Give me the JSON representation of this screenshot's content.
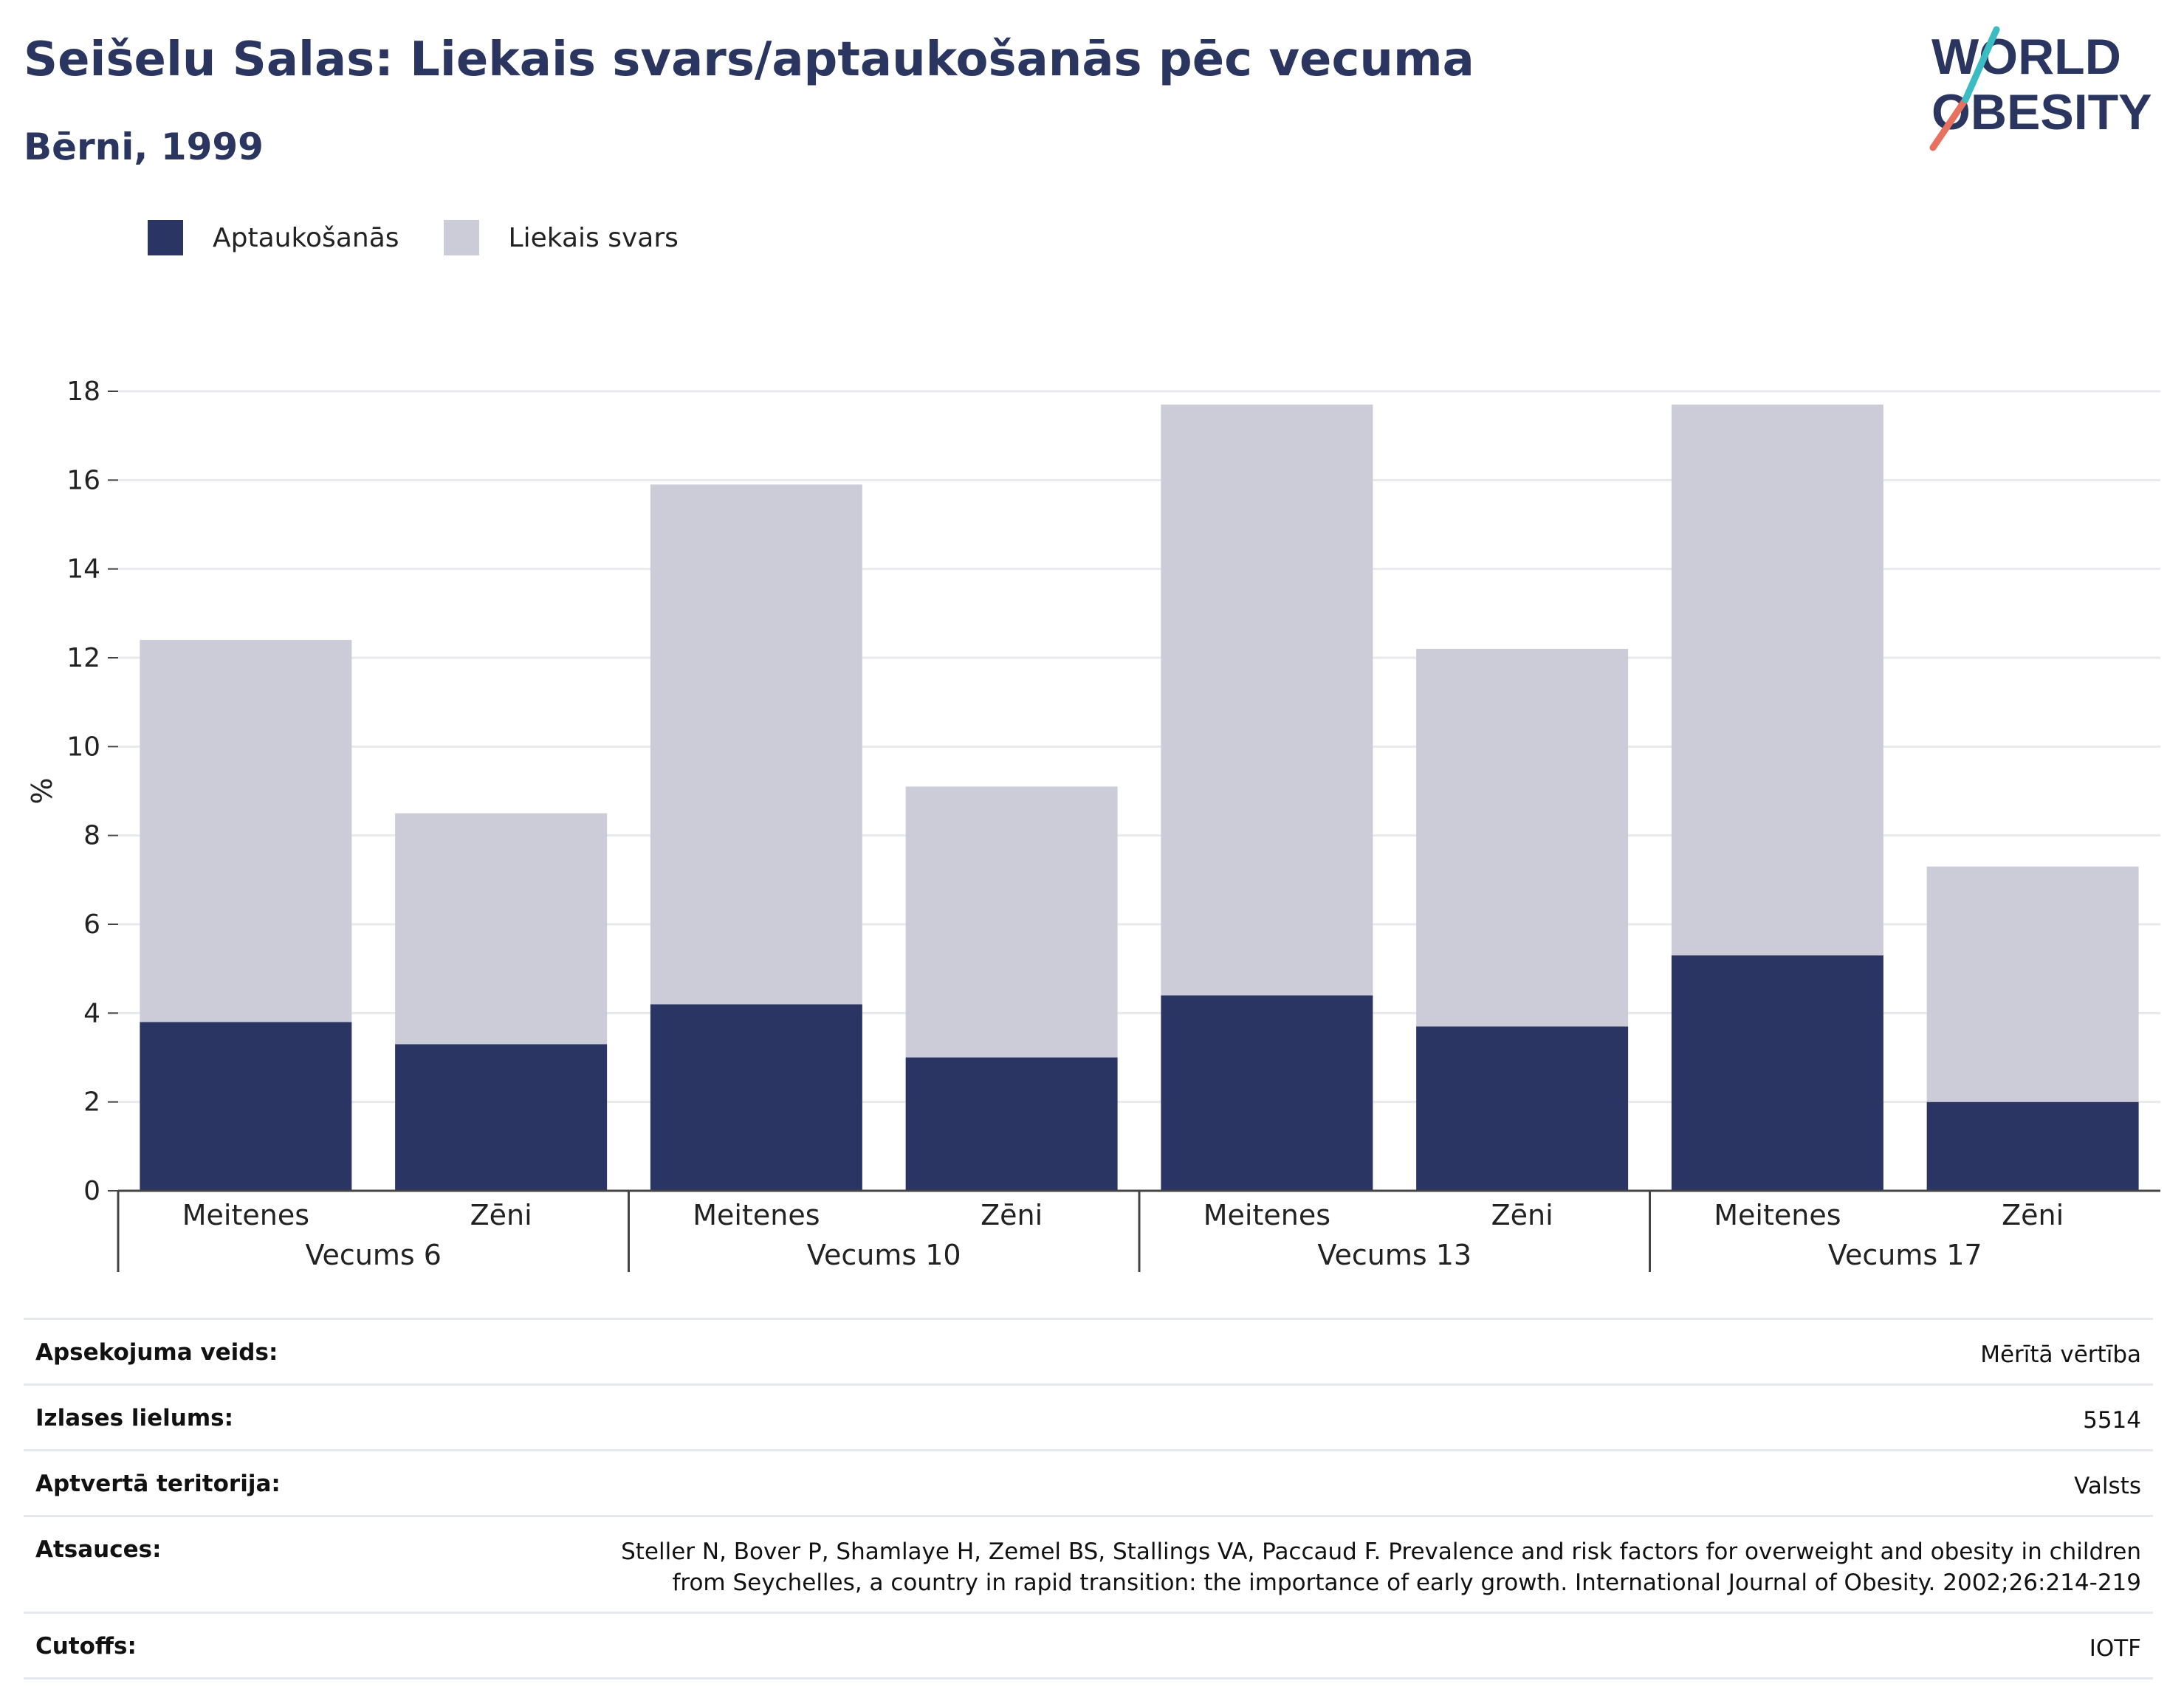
{
  "title": "Seišelu Salas: Liekais svars/aptaukošanās pēc vecuma",
  "subtitle": "Bērni, 1999",
  "logo": {
    "line1": "WORLD",
    "line2": "OBESITY"
  },
  "colors": {
    "obesity": "#2a3563",
    "overweight": "#cbccd8",
    "title": "#2a3560",
    "grid": "#e8e9ee",
    "axis": "#444444"
  },
  "chart_data": {
    "type": "bar",
    "stacked": true,
    "ylabel": "%",
    "ylim": [
      0,
      18
    ],
    "yticks": [
      0,
      2,
      4,
      6,
      8,
      10,
      12,
      14,
      16,
      18
    ],
    "grid": true,
    "legend_position": "top-left",
    "groups": [
      "Vecums 6",
      "Vecums 10",
      "Vecums 13",
      "Vecums 17"
    ],
    "categories": [
      "Meitenes",
      "Zēni",
      "Meitenes",
      "Zēni",
      "Meitenes",
      "Zēni",
      "Meitenes",
      "Zēni"
    ],
    "series": [
      {
        "name": "Aptaukošanās",
        "values": [
          3.8,
          3.3,
          4.2,
          3.0,
          4.4,
          3.7,
          5.3,
          2.0
        ]
      },
      {
        "name": "Liekais svars",
        "values": [
          8.6,
          5.2,
          11.7,
          6.1,
          13.3,
          8.5,
          12.4,
          5.3
        ]
      }
    ]
  },
  "meta": [
    {
      "label": "Apsekojuma veids:",
      "value": "Mērītā vērtība"
    },
    {
      "label": "Izlases lielums:",
      "value": "5514"
    },
    {
      "label": "Aptvertā teritorija:",
      "value": "Valsts"
    },
    {
      "label": "Atsauces:",
      "value": "Steller N, Bover P, Shamlaye H, Zemel BS, Stallings VA, Paccaud F. Prevalence and risk factors for overweight and obesity in children from Seychelles, a country in rapid transition: the importance of early growth. International Journal of Obesity. 2002;26:214-219"
    },
    {
      "label": "Cutoffs:",
      "value": "IOTF"
    }
  ]
}
